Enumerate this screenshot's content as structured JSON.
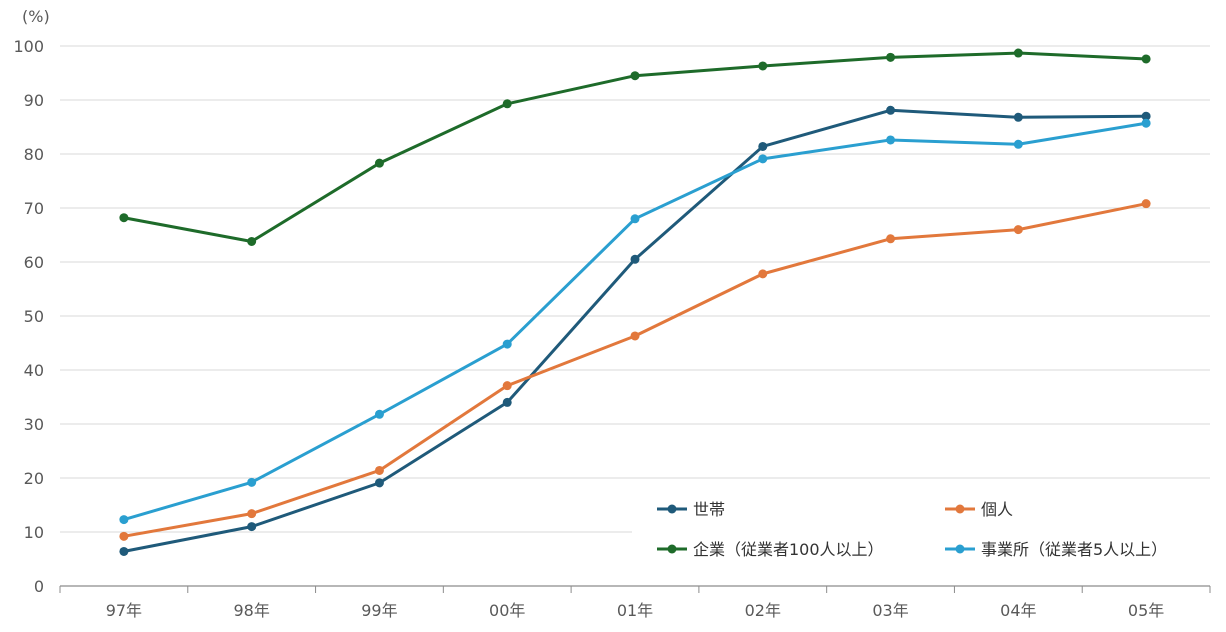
{
  "chart_data": {
    "type": "line",
    "y_unit_label": "(%)",
    "categories": [
      "97年",
      "98年",
      "99年",
      "00年",
      "01年",
      "02年",
      "03年",
      "04年",
      "05年"
    ],
    "yticks": [
      "0",
      "10",
      "20",
      "30",
      "40",
      "50",
      "60",
      "70",
      "80",
      "90",
      "100"
    ],
    "ylim": [
      0,
      100
    ],
    "grid": true,
    "legend_position": "bottom-right",
    "series": [
      {
        "name": "世帯",
        "color": "#1f5a7a",
        "values": [
          6.4,
          11.0,
          19.1,
          34.0,
          60.5,
          81.4,
          88.1,
          86.8,
          87.0
        ]
      },
      {
        "name": "個人",
        "color": "#e2783c",
        "values": [
          9.2,
          13.4,
          21.4,
          37.1,
          46.3,
          57.8,
          64.3,
          66.0,
          70.8
        ]
      },
      {
        "name": "企業（従業者100人以上）",
        "color": "#1e6b2a",
        "values": [
          68.2,
          63.8,
          78.3,
          89.3,
          94.5,
          96.3,
          97.9,
          98.7,
          97.6
        ]
      },
      {
        "name": "事業所（従業者5人以上）",
        "color": "#2a9fd0",
        "values": [
          12.3,
          19.2,
          31.8,
          44.8,
          68.0,
          79.1,
          82.6,
          81.8,
          85.7
        ]
      }
    ],
    "legend_order": [
      0,
      1,
      2,
      3
    ]
  }
}
